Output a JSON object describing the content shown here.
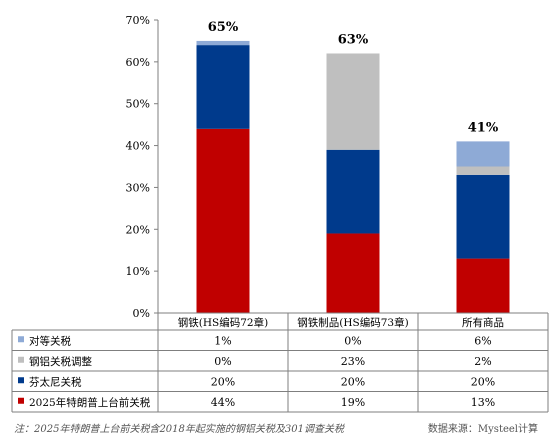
{
  "chart_data": {
    "type": "bar",
    "stacked": true,
    "categories": [
      "钢铁(HS编码72章)",
      "钢铁制品(HS编码73章)",
      "所有商品"
    ],
    "totals": [
      "65%",
      "63%",
      "41%"
    ],
    "ylim": [
      0,
      70
    ],
    "yticks": [
      "0%",
      "10%",
      "20%",
      "30%",
      "40%",
      "50%",
      "60%",
      "70%"
    ],
    "grid": false,
    "legend_position": "table-left",
    "series": [
      {
        "name": "2025年特朗普上台前关税",
        "color": "#c00000",
        "values": [
          44,
          19,
          13
        ],
        "labels": [
          "44%",
          "19%",
          "13%"
        ]
      },
      {
        "name": "芬太尼关税",
        "color": "#003a8c",
        "values": [
          20,
          20,
          20
        ],
        "labels": [
          "20%",
          "20%",
          "20%"
        ]
      },
      {
        "name": "钢铝关税调整",
        "color": "#bfbfbf",
        "values": [
          0,
          23,
          2
        ],
        "labels": [
          "0%",
          "23%",
          "2%"
        ]
      },
      {
        "name": "对等关税",
        "color": "#8eaad6",
        "values": [
          1,
          0,
          6
        ],
        "labels": [
          "1%",
          "0%",
          "6%"
        ]
      }
    ]
  },
  "footer": {
    "note": "注：2025年特朗普上台前关税含2018年起实施的钢铝关税及301调查关税",
    "source": "数据来源：Mysteel计算"
  }
}
